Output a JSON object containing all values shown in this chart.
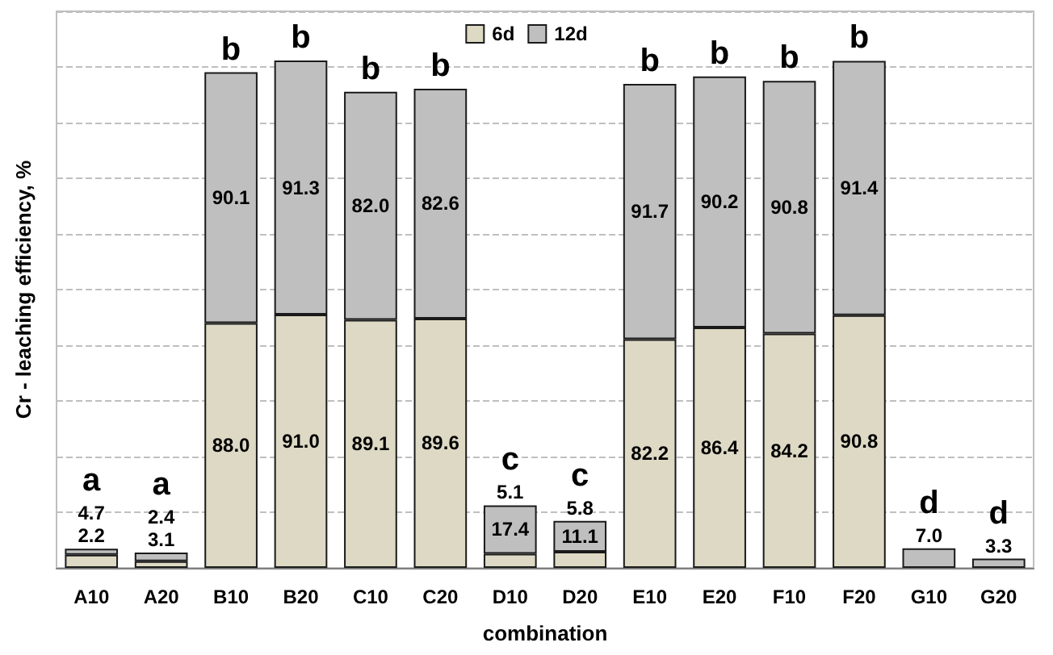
{
  "chart_data": {
    "type": "bar",
    "stacked": true,
    "xlabel": "combination",
    "ylabel": "Cr - leaching efficiency, %",
    "categories": [
      "A10",
      "A20",
      "B10",
      "B20",
      "C10",
      "C20",
      "D10",
      "D20",
      "E10",
      "E20",
      "F10",
      "F20",
      "G10",
      "G20"
    ],
    "series": [
      {
        "name": "6d",
        "color": "#ddd9c4",
        "values": [
          4.7,
          2.4,
          88.0,
          91.0,
          89.1,
          89.6,
          5.1,
          5.8,
          82.2,
          86.4,
          84.2,
          90.8,
          null,
          null
        ],
        "value_labels": [
          "4.7",
          "2.4",
          "88.0",
          "91.0",
          "89.1",
          "89.6",
          "5.1",
          "5.8",
          "82.2",
          "86.4",
          "84.2",
          "90.8",
          null,
          null
        ]
      },
      {
        "name": "12d",
        "color": "#bfbfbf",
        "values": [
          2.2,
          3.1,
          90.1,
          91.3,
          82.0,
          82.6,
          17.4,
          11.1,
          91.7,
          90.2,
          90.8,
          91.4,
          7.0,
          3.3
        ],
        "value_labels": [
          "2.2",
          "3.1",
          "90.1",
          "91.3",
          "82.0",
          "82.6",
          "17.4",
          "11.1",
          "91.7",
          "90.2",
          "90.8",
          "91.4",
          "7.0",
          "3.3"
        ]
      }
    ],
    "ylim": [
      0,
      200
    ],
    "tick_labels": "x",
    "grid": "y",
    "legend": "top",
    "annotations": [
      "a",
      "a",
      "b",
      "b",
      "b",
      "b",
      "c",
      "c",
      "b",
      "b",
      "b",
      "b",
      "d",
      "d"
    ]
  }
}
